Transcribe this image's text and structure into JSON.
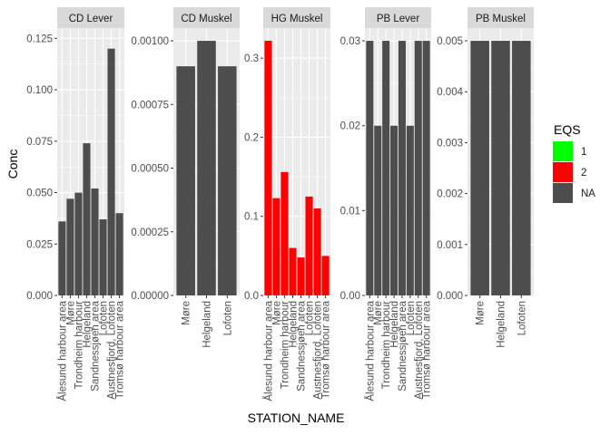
{
  "chart_data": {
    "type": "bar",
    "layout": "faceted, free y-scales",
    "xlabel": "STATION_NAME",
    "ylabel": "Conc",
    "legend": {
      "title": "EQS",
      "placement": "right",
      "entries": [
        {
          "label": "1",
          "color": "#00FF00"
        },
        {
          "label": "2",
          "color": "#FF0000"
        },
        {
          "label": "NA",
          "color": "#4D4D4D"
        }
      ]
    },
    "colors": {
      "panel_bg": "#EBEBEB",
      "strip_bg": "#D9D9D9",
      "grid": "#FFFFFF",
      "axis_text": "#4D4D4D"
    },
    "facets": [
      {
        "title": "CD Lever",
        "ylim": [
          0,
          0.13
        ],
        "yticks": [
          0,
          0.025,
          0.05,
          0.075,
          0.1,
          0.125
        ],
        "ytick_labels": [
          "0.000",
          "0.025",
          "0.050",
          "0.075",
          "0.100",
          "0.125"
        ],
        "categories": [
          "Ålesund harbour area",
          "Møre",
          "Trondheim harbour",
          "Helgeland",
          "Sandnessjøen area",
          "Lofoten",
          "Austnesfjord, Lofoten",
          "Tromsø harbour area"
        ],
        "values": [
          0.036,
          0.047,
          0.05,
          0.074,
          0.052,
          0.037,
          0.12,
          0.04
        ],
        "eqs": [
          "NA",
          "NA",
          "NA",
          "NA",
          "NA",
          "NA",
          "NA",
          "NA"
        ]
      },
      {
        "title": "CD Muskel",
        "ylim": [
          0,
          0.00105
        ],
        "yticks": [
          0,
          0.00025,
          0.0005,
          0.00075,
          0.001
        ],
        "ytick_labels": [
          "0.00000",
          "0.00025",
          "0.00050",
          "0.00075",
          "0.00100"
        ],
        "categories": [
          "Møre",
          "Helgeland",
          "Lofoten"
        ],
        "values": [
          0.0009,
          0.001,
          0.0009
        ],
        "eqs": [
          "NA",
          "NA",
          "NA"
        ]
      },
      {
        "title": "HG Muskel",
        "ylim": [
          0,
          0.338
        ],
        "yticks": [
          0,
          0.1,
          0.2,
          0.3
        ],
        "ytick_labels": [
          "0.0",
          "0.1",
          "0.2",
          "0.3"
        ],
        "categories": [
          "Ålesund harbour area",
          "Møre",
          "Trondheim harbour",
          "Helgeland",
          "Sandnessjøen area",
          "Lofoten",
          "Austnesfjord, Lofoten",
          "Tromsø harbour area"
        ],
        "values": [
          0.322,
          0.123,
          0.156,
          0.06,
          0.048,
          0.125,
          0.11,
          0.05
        ],
        "eqs": [
          "2",
          "2",
          "2",
          "2",
          "2",
          "2",
          "2",
          "2"
        ]
      },
      {
        "title": "PB Lever",
        "ylim": [
          0,
          0.0315
        ],
        "yticks": [
          0,
          0.01,
          0.02,
          0.03
        ],
        "ytick_labels": [
          "0.00",
          "0.01",
          "0.02",
          "0.03"
        ],
        "categories": [
          "Ålesund harbour area",
          "Møre",
          "Trondheim harbour",
          "Helgeland",
          "Sandnessjøen area",
          "Lofoten",
          "Austnesfjord, Lofoten",
          "Tromsø harbour area"
        ],
        "values": [
          0.03,
          0.02,
          0.03,
          0.02,
          0.03,
          0.02,
          0.03,
          0.03
        ],
        "eqs": [
          "NA",
          "NA",
          "NA",
          "NA",
          "NA",
          "NA",
          "NA",
          "NA"
        ]
      },
      {
        "title": "PB Muskel",
        "ylim": [
          0,
          0.00525
        ],
        "yticks": [
          0,
          0.001,
          0.002,
          0.003,
          0.004,
          0.005
        ],
        "ytick_labels": [
          "0.000",
          "0.001",
          "0.002",
          "0.003",
          "0.004",
          "0.005"
        ],
        "categories": [
          "Møre",
          "Helgeland",
          "Lofoten"
        ],
        "values": [
          0.005,
          0.005,
          0.005
        ],
        "eqs": [
          "NA",
          "NA",
          "NA"
        ]
      }
    ]
  }
}
